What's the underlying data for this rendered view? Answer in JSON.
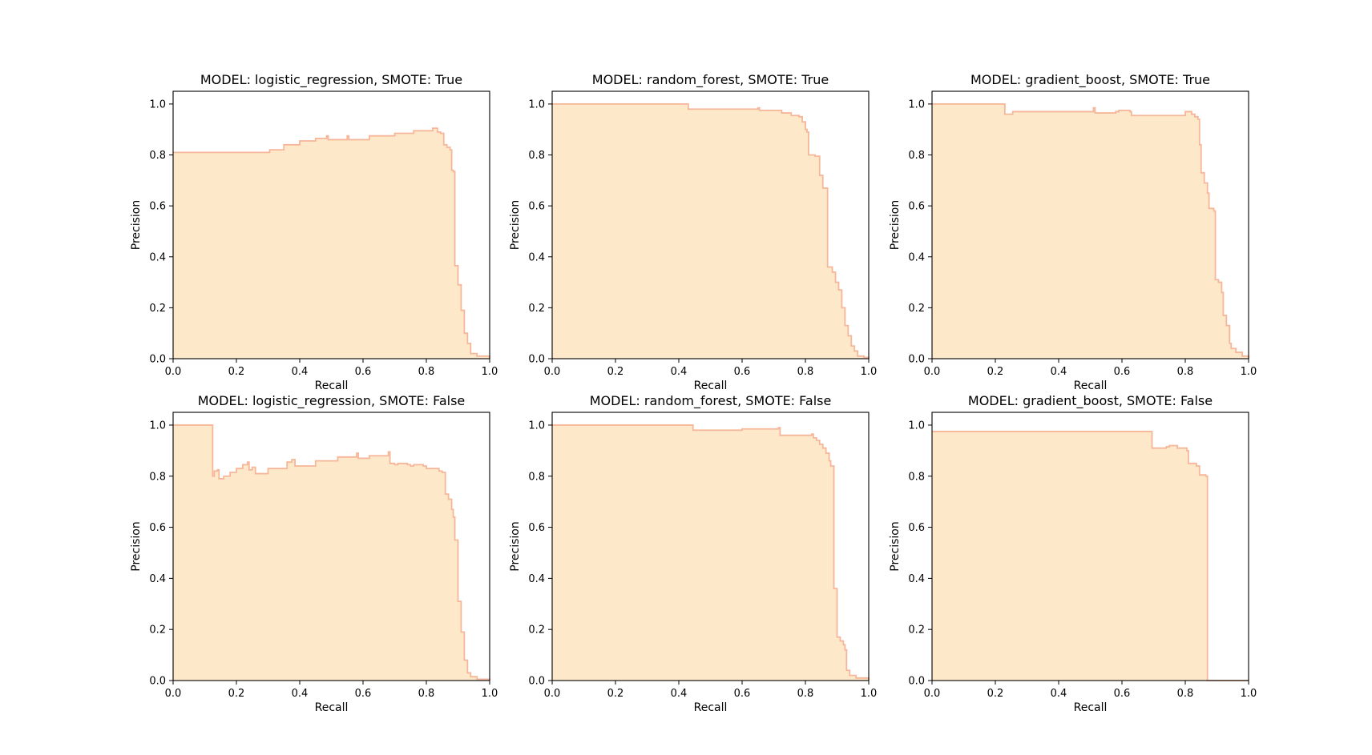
{
  "colors": {
    "fill": "#fde9c9",
    "line": "#f6b69a",
    "axes": "#000000",
    "background": "#ffffff"
  },
  "chart_data": [
    {
      "type": "area",
      "title": "MODEL: logistic_regression, SMOTE: True",
      "xlabel": "Recall",
      "ylabel": "Precision",
      "xlim": [
        0,
        1
      ],
      "ylim": [
        0,
        1.05
      ],
      "xticks": [
        "0.0",
        "0.2",
        "0.4",
        "0.6",
        "0.8",
        "1.0"
      ],
      "yticks": [
        "0.0",
        "0.2",
        "0.4",
        "0.6",
        "0.8",
        "1.0"
      ],
      "grid": false,
      "steps": [
        [
          0,
          0.81
        ],
        [
          0.295,
          0.81
        ],
        [
          0.305,
          0.82
        ],
        [
          0.35,
          0.84
        ],
        [
          0.4,
          0.855
        ],
        [
          0.45,
          0.865
        ],
        [
          0.485,
          0.875
        ],
        [
          0.49,
          0.86
        ],
        [
          0.55,
          0.875
        ],
        [
          0.555,
          0.86
        ],
        [
          0.62,
          0.875
        ],
        [
          0.7,
          0.885
        ],
        [
          0.76,
          0.895
        ],
        [
          0.82,
          0.905
        ],
        [
          0.835,
          0.89
        ],
        [
          0.845,
          0.885
        ],
        [
          0.855,
          0.84
        ],
        [
          0.865,
          0.83
        ],
        [
          0.875,
          0.82
        ],
        [
          0.88,
          0.74
        ],
        [
          0.885,
          0.735
        ],
        [
          0.89,
          0.365
        ],
        [
          0.9,
          0.29
        ],
        [
          0.91,
          0.19
        ],
        [
          0.92,
          0.1
        ],
        [
          0.93,
          0.06
        ],
        [
          0.94,
          0.02
        ],
        [
          0.96,
          0.01
        ],
        [
          1.0,
          0.0
        ]
      ]
    },
    {
      "type": "area",
      "title": "MODEL: random_forest, SMOTE: True",
      "xlabel": "Recall",
      "ylabel": "Precision",
      "xlim": [
        0,
        1
      ],
      "ylim": [
        0,
        1.05
      ],
      "xticks": [
        "0.0",
        "0.2",
        "0.4",
        "0.6",
        "0.8",
        "1.0"
      ],
      "yticks": [
        "0.0",
        "0.2",
        "0.4",
        "0.6",
        "0.8",
        "1.0"
      ],
      "grid": false,
      "steps": [
        [
          0,
          1.0
        ],
        [
          0.43,
          1.0
        ],
        [
          0.43,
          0.98
        ],
        [
          0.65,
          0.985
        ],
        [
          0.655,
          0.975
        ],
        [
          0.72,
          0.975
        ],
        [
          0.725,
          0.965
        ],
        [
          0.75,
          0.965
        ],
        [
          0.755,
          0.955
        ],
        [
          0.78,
          0.95
        ],
        [
          0.79,
          0.93
        ],
        [
          0.8,
          0.9
        ],
        [
          0.805,
          0.89
        ],
        [
          0.81,
          0.8
        ],
        [
          0.83,
          0.795
        ],
        [
          0.845,
          0.72
        ],
        [
          0.855,
          0.67
        ],
        [
          0.87,
          0.36
        ],
        [
          0.885,
          0.34
        ],
        [
          0.895,
          0.3
        ],
        [
          0.905,
          0.27
        ],
        [
          0.915,
          0.2
        ],
        [
          0.925,
          0.13
        ],
        [
          0.935,
          0.09
        ],
        [
          0.945,
          0.05
        ],
        [
          0.955,
          0.03
        ],
        [
          0.965,
          0.01
        ],
        [
          0.985,
          0.005
        ],
        [
          1.0,
          0.0
        ]
      ]
    },
    {
      "type": "area",
      "title": "MODEL: gradient_boost, SMOTE: True",
      "xlabel": "Recall",
      "ylabel": "Precision",
      "xlim": [
        0,
        1
      ],
      "ylim": [
        0,
        1.05
      ],
      "xticks": [
        "0.0",
        "0.2",
        "0.4",
        "0.6",
        "0.8",
        "1.0"
      ],
      "yticks": [
        "0.0",
        "0.2",
        "0.4",
        "0.6",
        "0.8",
        "1.0"
      ],
      "grid": false,
      "steps": [
        [
          0,
          1.0
        ],
        [
          0.225,
          1.0
        ],
        [
          0.23,
          0.96
        ],
        [
          0.25,
          0.96
        ],
        [
          0.255,
          0.97
        ],
        [
          0.3,
          0.97
        ],
        [
          0.51,
          0.985
        ],
        [
          0.515,
          0.965
        ],
        [
          0.58,
          0.97
        ],
        [
          0.59,
          0.975
        ],
        [
          0.625,
          0.97
        ],
        [
          0.63,
          0.955
        ],
        [
          0.8,
          0.97
        ],
        [
          0.82,
          0.96
        ],
        [
          0.83,
          0.95
        ],
        [
          0.84,
          0.94
        ],
        [
          0.845,
          0.84
        ],
        [
          0.85,
          0.73
        ],
        [
          0.86,
          0.69
        ],
        [
          0.87,
          0.65
        ],
        [
          0.875,
          0.59
        ],
        [
          0.89,
          0.58
        ],
        [
          0.895,
          0.31
        ],
        [
          0.905,
          0.3
        ],
        [
          0.915,
          0.26
        ],
        [
          0.92,
          0.17
        ],
        [
          0.93,
          0.13
        ],
        [
          0.94,
          0.06
        ],
        [
          0.945,
          0.04
        ],
        [
          0.96,
          0.025
        ],
        [
          0.98,
          0.01
        ],
        [
          1.0,
          0.0
        ]
      ]
    },
    {
      "type": "area",
      "title": "MODEL: logistic_regression, SMOTE: False",
      "xlabel": "Recall",
      "ylabel": "Precision",
      "xlim": [
        0,
        1
      ],
      "ylim": [
        0,
        1.05
      ],
      "xticks": [
        "0.0",
        "0.2",
        "0.4",
        "0.6",
        "0.8",
        "1.0"
      ],
      "yticks": [
        "0.0",
        "0.2",
        "0.4",
        "0.6",
        "0.8",
        "1.0"
      ],
      "grid": false,
      "steps": [
        [
          0,
          1.0
        ],
        [
          0.12,
          1.0
        ],
        [
          0.125,
          0.8
        ],
        [
          0.13,
          0.82
        ],
        [
          0.14,
          0.825
        ],
        [
          0.145,
          0.79
        ],
        [
          0.16,
          0.8
        ],
        [
          0.18,
          0.815
        ],
        [
          0.2,
          0.83
        ],
        [
          0.22,
          0.845
        ],
        [
          0.235,
          0.855
        ],
        [
          0.24,
          0.825
        ],
        [
          0.25,
          0.835
        ],
        [
          0.26,
          0.81
        ],
        [
          0.3,
          0.83
        ],
        [
          0.36,
          0.855
        ],
        [
          0.375,
          0.865
        ],
        [
          0.385,
          0.84
        ],
        [
          0.45,
          0.86
        ],
        [
          0.52,
          0.875
        ],
        [
          0.58,
          0.89
        ],
        [
          0.585,
          0.87
        ],
        [
          0.62,
          0.88
        ],
        [
          0.68,
          0.895
        ],
        [
          0.685,
          0.85
        ],
        [
          0.7,
          0.845
        ],
        [
          0.71,
          0.85
        ],
        [
          0.74,
          0.845
        ],
        [
          0.75,
          0.84
        ],
        [
          0.76,
          0.845
        ],
        [
          0.79,
          0.84
        ],
        [
          0.8,
          0.83
        ],
        [
          0.83,
          0.83
        ],
        [
          0.84,
          0.82
        ],
        [
          0.85,
          0.815
        ],
        [
          0.86,
          0.73
        ],
        [
          0.87,
          0.71
        ],
        [
          0.88,
          0.67
        ],
        [
          0.885,
          0.64
        ],
        [
          0.89,
          0.55
        ],
        [
          0.9,
          0.31
        ],
        [
          0.91,
          0.19
        ],
        [
          0.92,
          0.08
        ],
        [
          0.93,
          0.03
        ],
        [
          0.94,
          0.015
        ],
        [
          0.96,
          0.005
        ],
        [
          1.0,
          0.0
        ]
      ]
    },
    {
      "type": "area",
      "title": "MODEL: random_forest, SMOTE: False",
      "xlabel": "Recall",
      "ylabel": "Precision",
      "xlim": [
        0,
        1
      ],
      "ylim": [
        0,
        1.05
      ],
      "xticks": [
        "0.0",
        "0.2",
        "0.4",
        "0.6",
        "0.8",
        "1.0"
      ],
      "yticks": [
        "0.0",
        "0.2",
        "0.4",
        "0.6",
        "0.8",
        "1.0"
      ],
      "grid": false,
      "steps": [
        [
          0,
          1.0
        ],
        [
          0.44,
          1.0
        ],
        [
          0.445,
          0.98
        ],
        [
          0.6,
          0.985
        ],
        [
          0.715,
          0.99
        ],
        [
          0.72,
          0.96
        ],
        [
          0.82,
          0.965
        ],
        [
          0.825,
          0.95
        ],
        [
          0.835,
          0.94
        ],
        [
          0.845,
          0.925
        ],
        [
          0.855,
          0.91
        ],
        [
          0.865,
          0.89
        ],
        [
          0.875,
          0.86
        ],
        [
          0.88,
          0.84
        ],
        [
          0.89,
          0.36
        ],
        [
          0.9,
          0.17
        ],
        [
          0.91,
          0.155
        ],
        [
          0.92,
          0.14
        ],
        [
          0.925,
          0.12
        ],
        [
          0.93,
          0.04
        ],
        [
          0.94,
          0.02
        ],
        [
          0.96,
          0.01
        ],
        [
          1.0,
          0.0
        ]
      ]
    },
    {
      "type": "area",
      "title": "MODEL: gradient_boost, SMOTE: False",
      "xlabel": "Recall",
      "ylabel": "Precision",
      "xlim": [
        0,
        1
      ],
      "ylim": [
        0,
        1.05
      ],
      "xticks": [
        "0.0",
        "0.2",
        "0.4",
        "0.6",
        "0.8",
        "1.0"
      ],
      "yticks": [
        "0.0",
        "0.2",
        "0.4",
        "0.6",
        "0.8",
        "1.0"
      ],
      "grid": false,
      "steps": [
        [
          0,
          0.975
        ],
        [
          0.69,
          0.975
        ],
        [
          0.695,
          0.91
        ],
        [
          0.74,
          0.915
        ],
        [
          0.75,
          0.92
        ],
        [
          0.77,
          0.92
        ],
        [
          0.775,
          0.91
        ],
        [
          0.8,
          0.91
        ],
        [
          0.805,
          0.9
        ],
        [
          0.81,
          0.85
        ],
        [
          0.835,
          0.84
        ],
        [
          0.845,
          0.805
        ],
        [
          0.865,
          0.8
        ],
        [
          0.87,
          0.0
        ],
        [
          1.0,
          0.0
        ]
      ]
    }
  ]
}
